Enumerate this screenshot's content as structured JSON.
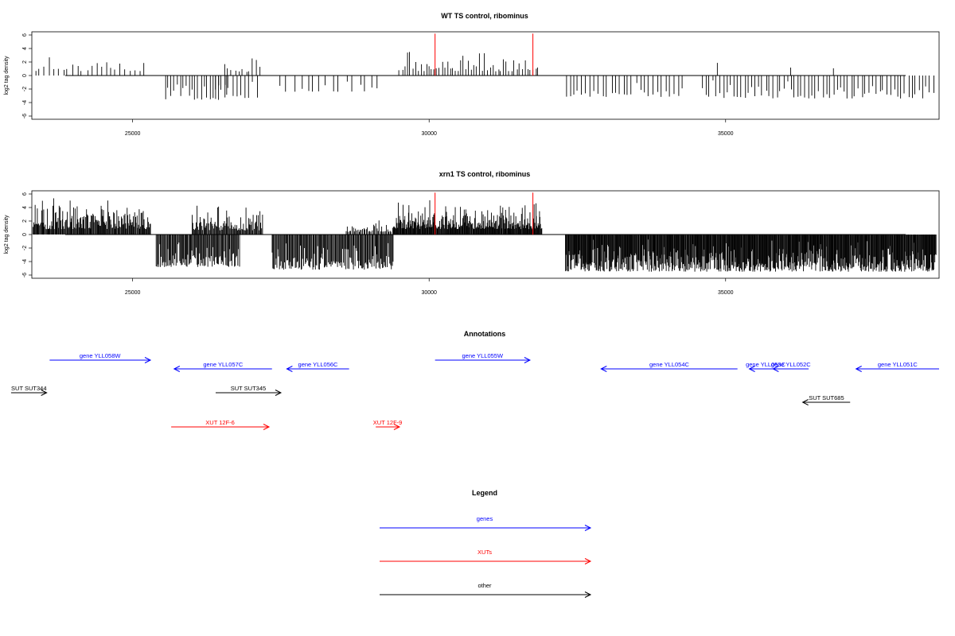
{
  "colors": {
    "gene": "#0000ff",
    "xut": "#ff0000",
    "other": "#000000",
    "highlight": "#ff0000"
  },
  "chart_data": [
    {
      "type": "bar",
      "title": "WT TS control, ribominus",
      "ylabel": "log2 tag density",
      "xlim": [
        23300,
        38600
      ],
      "ylim": [
        -6,
        6
      ],
      "xticks": [
        "25000",
        "30000",
        "35000"
      ],
      "xtick_values": [
        25000,
        30000,
        35000
      ],
      "yticks": [
        "6",
        "4",
        "2",
        "0",
        "-2",
        "-4",
        "-6"
      ],
      "ytick_values": [
        6,
        4,
        2,
        0,
        -2,
        -4,
        -6
      ],
      "baseline_range": [
        23300,
        38600
      ],
      "highlight_positions": [
        30100,
        31750
      ],
      "highlight_height": 6.2,
      "segments": [
        {
          "from": 23350,
          "to": 25200,
          "step": 80,
          "min": 0.6,
          "max": 3.2,
          "sign": 1,
          "seed": 11
        },
        {
          "from": 25550,
          "to": 26600,
          "step": 50,
          "min": -3.6,
          "max": -0.6,
          "sign": -1,
          "seed": 12
        },
        {
          "from": 26550,
          "to": 27150,
          "step": 60,
          "min": 0.5,
          "max": 3.0,
          "sign": 1,
          "seed": 13
        },
        {
          "from": 26400,
          "to": 27100,
          "step": 70,
          "min": -3.4,
          "max": -0.8,
          "sign": -1,
          "seed": 14
        },
        {
          "from": 27500,
          "to": 29200,
          "step": 110,
          "min": -2.4,
          "max": -0.5,
          "sign": -1,
          "seed": 15
        },
        {
          "from": 29500,
          "to": 31850,
          "step": 45,
          "min": 0.6,
          "max": 4.3,
          "sign": 1,
          "seed": 16
        },
        {
          "from": 32300,
          "to": 34300,
          "step": 70,
          "min": -3.2,
          "max": -0.6,
          "sign": -1,
          "seed": 17
        },
        {
          "from": 34600,
          "to": 38550,
          "step": 60,
          "min": -3.4,
          "max": -0.5,
          "sign": -1,
          "seed": 18
        },
        {
          "from": 34800,
          "to": 37400,
          "step": 1100,
          "min": 1.0,
          "max": 2.6,
          "sign": 1,
          "seed": 19
        }
      ]
    },
    {
      "type": "bar",
      "title": "xrn1 TS control, ribominus",
      "ylabel": "log2 tag density",
      "xlim": [
        23300,
        38600
      ],
      "ylim": [
        -6,
        6
      ],
      "xticks": [
        "25000",
        "30000",
        "35000"
      ],
      "xtick_values": [
        25000,
        30000,
        35000
      ],
      "yticks": [
        "6",
        "4",
        "2",
        "0",
        "-2",
        "-4",
        "-6"
      ],
      "ytick_values": [
        6,
        4,
        2,
        0,
        -2,
        -4,
        -6
      ],
      "baseline_range": [
        23300,
        38600
      ],
      "highlight_positions": [
        30100,
        31750
      ],
      "highlight_height": 6.2,
      "segments": [
        {
          "from": 23320,
          "to": 25300,
          "step": 12,
          "min": 0.8,
          "max": 6.0,
          "sign": 1,
          "seed": 21
        },
        {
          "from": 25400,
          "to": 26800,
          "step": 14,
          "min": -4.8,
          "max": -0.6,
          "sign": -1,
          "seed": 22
        },
        {
          "from": 26000,
          "to": 27200,
          "step": 14,
          "min": 0.6,
          "max": 4.6,
          "sign": 1,
          "seed": 23
        },
        {
          "from": 27350,
          "to": 29400,
          "step": 14,
          "min": -5.2,
          "max": -0.8,
          "sign": -1,
          "seed": 24
        },
        {
          "from": 28600,
          "to": 29400,
          "step": 20,
          "min": 0.4,
          "max": 2.4,
          "sign": 1,
          "seed": 25
        },
        {
          "from": 29400,
          "to": 31900,
          "step": 10,
          "min": 0.8,
          "max": 5.2,
          "sign": 1,
          "seed": 26
        },
        {
          "from": 32300,
          "to": 38550,
          "step": 10,
          "min": -5.5,
          "max": -0.6,
          "sign": -1,
          "seed": 27
        }
      ]
    }
  ],
  "annotations": {
    "title": "Annotations",
    "xlim": [
      23300,
      38600
    ],
    "items": [
      {
        "label": "gene YLL058W",
        "from": 23600,
        "to": 25300,
        "row": 0,
        "kind": "gene"
      },
      {
        "label": "gene YLL057C",
        "from": 27350,
        "to": 25700,
        "row": 1,
        "kind": "gene"
      },
      {
        "label": "gene YLL056C",
        "from": 28650,
        "to": 27600,
        "row": 1,
        "kind": "gene"
      },
      {
        "label": "gene YLL055W",
        "from": 30100,
        "to": 31700,
        "row": 0,
        "kind": "gene"
      },
      {
        "label": "gene YLL054C",
        "from": 35200,
        "to": 32900,
        "row": 1,
        "kind": "gene"
      },
      {
        "label": "gene YLL053C",
        "from": 35950,
        "to": 35400,
        "row": 1,
        "kind": "gene"
      },
      {
        "label": "gene YLL052C",
        "from": 36400,
        "to": 35800,
        "row": 1,
        "kind": "gene"
      },
      {
        "label": "gene YLL051C",
        "from": 38600,
        "to": 37200,
        "row": 1,
        "kind": "gene"
      },
      {
        "label": "SUT SUT344",
        "from": 22950,
        "to": 23550,
        "row": 2,
        "kind": "other"
      },
      {
        "label": "SUT SUT345",
        "from": 26400,
        "to": 27500,
        "row": 2,
        "kind": "other"
      },
      {
        "label": "SUT SUT685",
        "from": 37100,
        "to": 36300,
        "row": 3,
        "kind": "other"
      },
      {
        "label": "XUT 12F-6",
        "from": 25650,
        "to": 27300,
        "row": 4,
        "kind": "xut"
      },
      {
        "label": "XUT 12F-9",
        "from": 29100,
        "to": 29500,
        "row": 4,
        "kind": "xut"
      }
    ]
  },
  "legend": {
    "title": "Legend",
    "items": [
      {
        "label": "genes",
        "kind": "gene"
      },
      {
        "label": "XUTs",
        "kind": "xut"
      },
      {
        "label": "other",
        "kind": "other"
      }
    ]
  }
}
